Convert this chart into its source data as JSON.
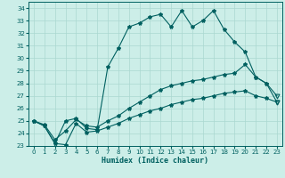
{
  "xlabel": "Humidex (Indice chaleur)",
  "ylabel": "",
  "bg_color": "#cceee8",
  "grid_color": "#aad8d0",
  "line_color": "#006060",
  "xlim": [
    -0.5,
    23.5
  ],
  "ylim": [
    23,
    34.5
  ],
  "yticks": [
    23,
    24,
    25,
    26,
    27,
    28,
    29,
    30,
    31,
    32,
    33,
    34
  ],
  "xticks": [
    0,
    1,
    2,
    3,
    4,
    5,
    6,
    7,
    8,
    9,
    10,
    11,
    12,
    13,
    14,
    15,
    16,
    17,
    18,
    19,
    20,
    21,
    22,
    23
  ],
  "series1_y": [
    25.0,
    24.6,
    23.2,
    25.0,
    25.2,
    24.4,
    24.3,
    29.3,
    30.8,
    32.5,
    32.8,
    33.3,
    33.5,
    32.5,
    33.8,
    32.5,
    33.0,
    33.8,
    32.3,
    31.3,
    30.5,
    28.5,
    28.0,
    26.5
  ],
  "series2_y": [
    25.0,
    24.6,
    23.2,
    23.1,
    24.8,
    24.1,
    24.2,
    24.5,
    24.8,
    25.2,
    25.5,
    25.8,
    26.0,
    26.3,
    26.5,
    26.7,
    26.8,
    27.0,
    27.2,
    27.3,
    27.4,
    27.0,
    26.8,
    26.5
  ],
  "series3_y": [
    25.0,
    24.7,
    23.5,
    24.2,
    25.1,
    24.6,
    24.5,
    25.0,
    25.4,
    26.0,
    26.5,
    27.0,
    27.5,
    27.8,
    28.0,
    28.2,
    28.3,
    28.5,
    28.7,
    28.8,
    29.5,
    28.5,
    28.0,
    27.0
  ]
}
